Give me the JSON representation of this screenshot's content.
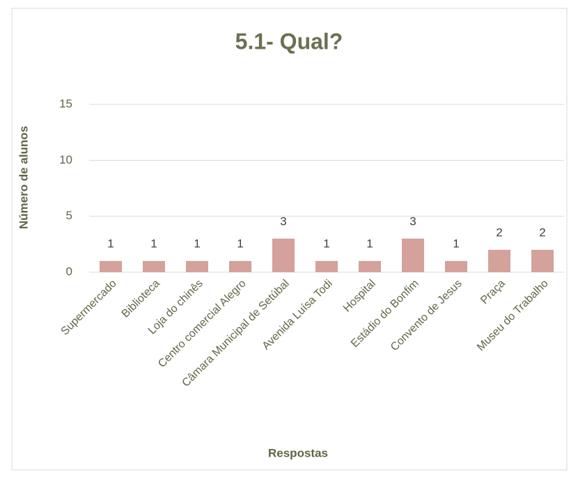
{
  "chart_data": {
    "type": "bar",
    "title": "5.1- Qual?",
    "x_label": "Respostas",
    "y_label": "Número de alunos",
    "categories": [
      "Supermercado",
      "Biblioteca",
      "Loja do chinês",
      "Centro comercial Alegro",
      "Câmara Municipal de Setúbal",
      "Avenida Luísa Todi",
      "Hospital",
      "Estádio do Bonfim",
      "Convento de Jesus",
      "Praça",
      "Museu do Trabalho"
    ],
    "values": [
      1,
      1,
      1,
      1,
      3,
      1,
      1,
      3,
      1,
      2,
      2
    ],
    "color": "#d4a19b",
    "ylim": [
      0,
      15
    ],
    "yticks": [
      0,
      5,
      10,
      15
    ],
    "grid": true
  }
}
